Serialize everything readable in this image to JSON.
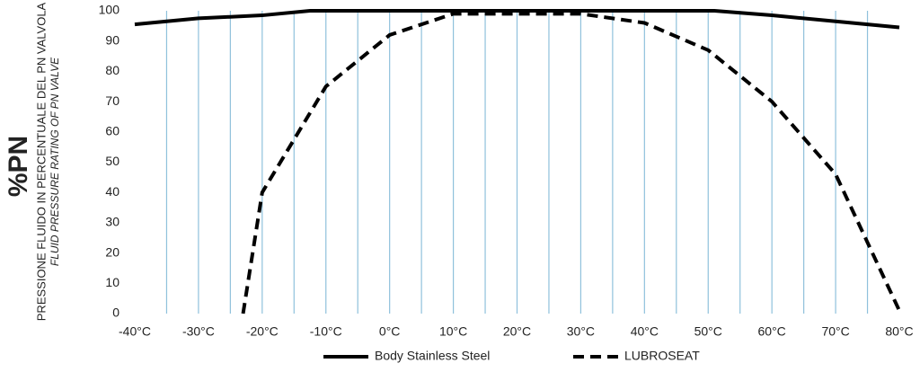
{
  "chart_data": {
    "type": "line",
    "ylabel": "%PN",
    "ylabel_sub": "PRESSIONE FLUIDO IN PERCENTUALE DEL PN VALVOLA",
    "ylabel_sub_en": "FLUID PRESSURE RATING OF PN VALVE",
    "xlim": [
      -40,
      80
    ],
    "ylim": [
      0,
      100
    ],
    "xticks": [
      {
        "value": -40,
        "label": "-40°C"
      },
      {
        "value": -30,
        "label": "-30°C"
      },
      {
        "value": -20,
        "label": "-20°C"
      },
      {
        "value": -10,
        "label": "-10°C"
      },
      {
        "value": 0,
        "label": "0°C"
      },
      {
        "value": 10,
        "label": "10°C"
      },
      {
        "value": 20,
        "label": "20°C"
      },
      {
        "value": 30,
        "label": "30°C"
      },
      {
        "value": 40,
        "label": "40°C"
      },
      {
        "value": 50,
        "label": "50°C"
      },
      {
        "value": 60,
        "label": "60°C"
      },
      {
        "value": 70,
        "label": "70°C"
      },
      {
        "value": 80,
        "label": "80°C"
      }
    ],
    "yticks": [
      0,
      10,
      20,
      30,
      40,
      50,
      60,
      70,
      80,
      90,
      100
    ],
    "grid": "x",
    "series": [
      {
        "name": "Body Stainless Steel",
        "color": "#000000",
        "dashed": false,
        "x": [
          -40,
          -30,
          -20,
          -12.5,
          51,
          60,
          70,
          80
        ],
        "values": [
          95.5,
          97.5,
          98.5,
          100,
          100,
          98.5,
          96.5,
          94.5
        ]
      },
      {
        "name": "LUBROSEAT",
        "color": "#000000",
        "dashed": true,
        "x": [
          -23,
          -20,
          -10,
          0,
          10,
          30,
          40,
          50,
          60,
          70,
          80
        ],
        "values": [
          0,
          40,
          75,
          92,
          99,
          99,
          96,
          87,
          70,
          46,
          1
        ]
      }
    ]
  }
}
